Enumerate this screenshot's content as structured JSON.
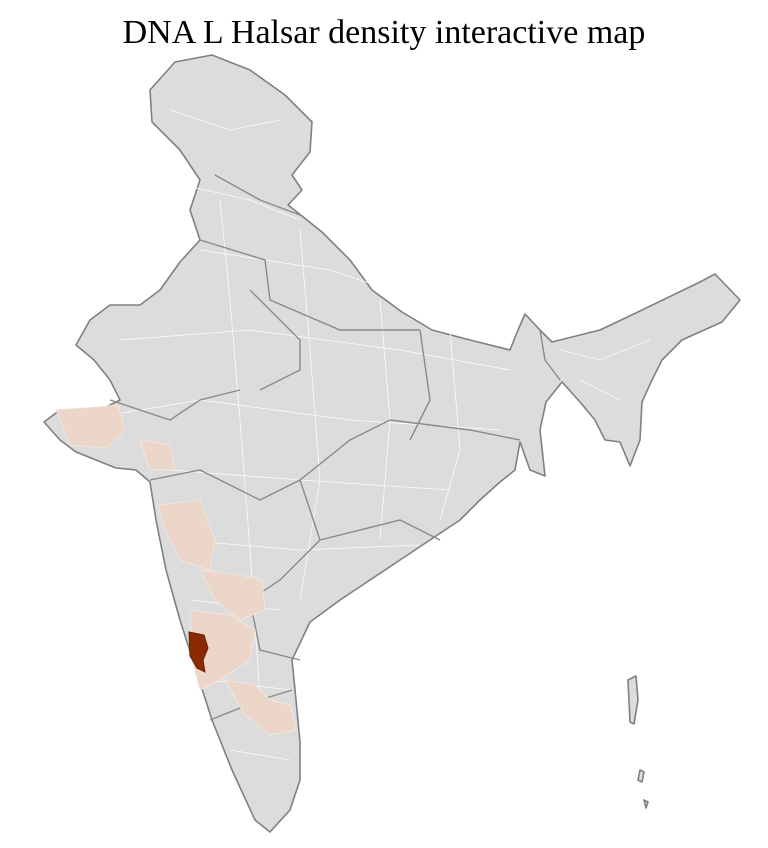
{
  "title": "DNA L Halsar density interactive map",
  "map": {
    "region": "India districts",
    "colors": {
      "no_data": "#dcdcdc",
      "low_density": "#ecd6ca",
      "high_density": "#8b2a00",
      "borders": "#808080",
      "district_lines": "#ffffff"
    }
  }
}
